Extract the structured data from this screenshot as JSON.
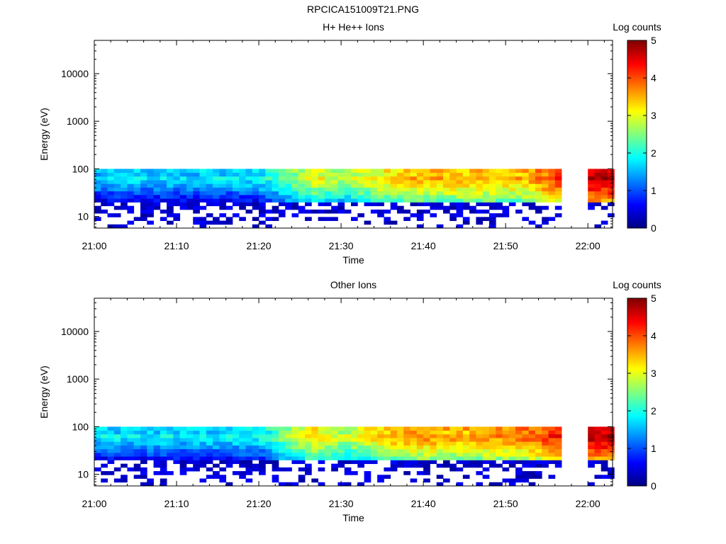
{
  "title": "RPCICA151009T21.PNG",
  "chart_data": [
    {
      "type": "heatmap",
      "title": "H+ He++ Ions",
      "xlabel": "Time",
      "ylabel": "Energy (eV)",
      "x_ticks": [
        "21:00",
        "21:10",
        "21:20",
        "21:30",
        "21:40",
        "21:50",
        "22:00"
      ],
      "y_ticks": [
        "10",
        "100",
        "1000",
        "10000"
      ],
      "y_scale": "log",
      "ylim": [
        5.7,
        50000
      ],
      "xlim": [
        "21:00",
        "22:03"
      ],
      "colorbar": {
        "label": "Log counts",
        "ticks": [
          "0",
          "1",
          "2",
          "3",
          "4",
          "5"
        ],
        "range": [
          0,
          5
        ],
        "colormap": "jet"
      },
      "data_gap": [
        "21:57",
        "22:00"
      ],
      "energy_range_with_data": [
        5.7,
        100
      ],
      "level_by_time": [
        {
          "time": "21:00",
          "peak_log_counts": 2.0
        },
        {
          "time": "21:10",
          "peak_log_counts": 2.0
        },
        {
          "time": "21:20",
          "peak_log_counts": 2.1
        },
        {
          "time": "21:27",
          "peak_log_counts": 3.4
        },
        {
          "time": "21:30",
          "peak_log_counts": 3.0
        },
        {
          "time": "21:38",
          "peak_log_counts": 3.8
        },
        {
          "time": "21:45",
          "peak_log_counts": 3.8
        },
        {
          "time": "21:52",
          "peak_log_counts": 3.8
        },
        {
          "time": "22:00",
          "peak_log_counts": 5.0
        }
      ]
    },
    {
      "type": "heatmap",
      "title": "Other Ions",
      "xlabel": "Time",
      "ylabel": "Energy (eV)",
      "x_ticks": [
        "21:00",
        "21:10",
        "21:20",
        "21:30",
        "21:40",
        "21:50",
        "22:00"
      ],
      "y_ticks": [
        "10",
        "100",
        "1000",
        "10000"
      ],
      "y_scale": "log",
      "ylim": [
        5.7,
        50000
      ],
      "xlim": [
        "21:00",
        "22:03"
      ],
      "colorbar": {
        "label": "Log counts",
        "ticks": [
          "0",
          "1",
          "2",
          "3",
          "4",
          "5"
        ],
        "range": [
          0,
          5
        ],
        "colormap": "jet"
      },
      "data_gap": [
        "21:57",
        "22:00"
      ],
      "energy_range_with_data": [
        5.7,
        100
      ],
      "level_by_time": [
        {
          "time": "21:00",
          "peak_log_counts": 2.1
        },
        {
          "time": "21:10",
          "peak_log_counts": 2.1
        },
        {
          "time": "21:20",
          "peak_log_counts": 2.2
        },
        {
          "time": "21:27",
          "peak_log_counts": 3.7
        },
        {
          "time": "21:30",
          "peak_log_counts": 3.1
        },
        {
          "time": "21:38",
          "peak_log_counts": 4.0
        },
        {
          "time": "21:45",
          "peak_log_counts": 3.9
        },
        {
          "time": "21:52",
          "peak_log_counts": 4.1
        },
        {
          "time": "22:00",
          "peak_log_counts": 5.0
        }
      ]
    }
  ]
}
